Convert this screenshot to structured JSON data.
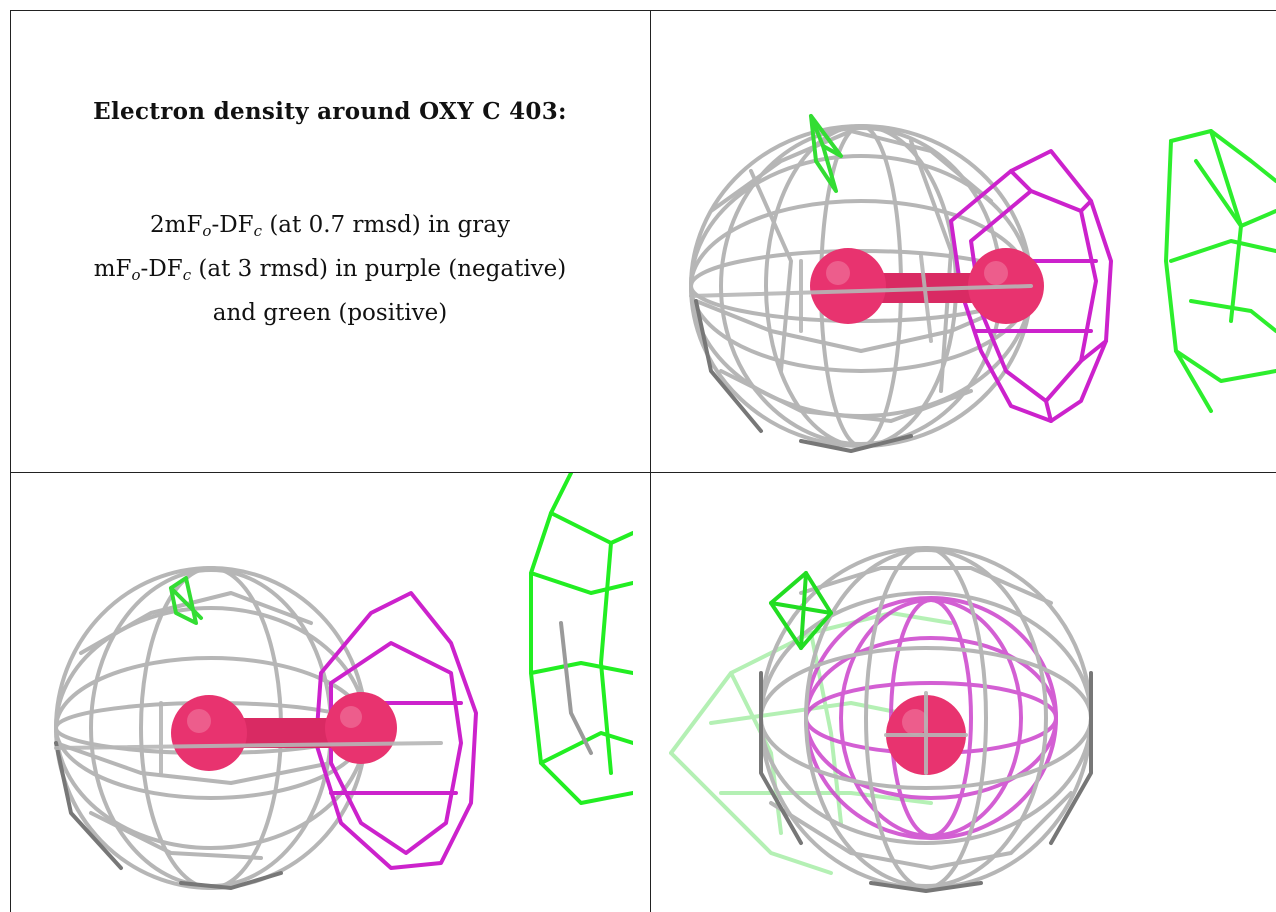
{
  "caption": {
    "title": "Electron density around OXY C 403:",
    "line1_prefix": "2mF",
    "line1_sub1": "o",
    "line1_mid": "-DF",
    "line1_sub2": "c",
    "line1_suffix": " (at 0.7 rmsd) in gray",
    "line2_prefix": "mF",
    "line2_sub1": "o",
    "line2_mid": "-DF",
    "line2_sub2": "c",
    "line2_suffix": " (at 3 rmsd) in purple (negative)",
    "line3": "and green (positive)"
  },
  "colors": {
    "gray_mesh": "#b4b4b4",
    "purple_mesh": "#cc22cc",
    "green_mesh": "#22ee22",
    "molecule": "#e8336f"
  }
}
